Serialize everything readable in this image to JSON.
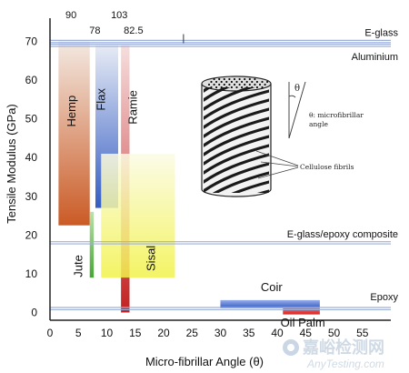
{
  "chart_data": {
    "type": "bar",
    "xlabel": "Micro-fibrillar Angle (θ)",
    "ylabel": "Tensile Modulus (GPa)",
    "xlim": [
      0,
      60
    ],
    "ylim": [
      -2,
      76
    ],
    "xticks": [
      "0",
      "5",
      "10",
      "15",
      "20",
      "25",
      "30",
      "35",
      "40",
      "45",
      "50",
      "55"
    ],
    "yticks": [
      "0",
      "10",
      "20",
      "30",
      "40",
      "50",
      "60",
      "70"
    ],
    "fibres": [
      {
        "name": "Hemp",
        "x_min": 1.5,
        "x_max": 7,
        "y_min": 22.5,
        "y_max": 70,
        "peak_label": "90",
        "color_top": "#f2e8e0",
        "color_bottom": "#c8521a"
      },
      {
        "name": "Jute",
        "x_min": 7,
        "x_max": 7.7,
        "y_min": 9,
        "y_max": 26,
        "peak_label": "",
        "color_top": "#b8e0a8",
        "color_bottom": "#3ea02c"
      },
      {
        "name": "Flax",
        "x_min": 8,
        "x_max": 12,
        "y_min": 27,
        "y_max": 69,
        "peak_label": "103",
        "color_top": "#e6eaf4",
        "color_bottom": "#2a55c0"
      },
      {
        "name": "Ramie",
        "x_min": 12.5,
        "x_max": 14,
        "y_min": 0,
        "y_max": 69,
        "peak_label": "82.5",
        "color_top": "#f6dcdc",
        "color_bottom": "#c01616"
      },
      {
        "name": "Sisal",
        "x_min": 9,
        "x_max": 22,
        "y_min": 9,
        "y_max": 41,
        "peak_label": "",
        "color_top": "#fbfbe4",
        "color_bottom": "#f2f24a"
      },
      {
        "name": "Coir",
        "x_min": 30,
        "x_max": 47.5,
        "y_min": 1.1,
        "y_max": 3.2,
        "peak_label": "",
        "color_top": "#8fa8e8",
        "color_bottom": "#2a55c0"
      },
      {
        "name": "Oil Palm",
        "x_min": 41,
        "x_max": 47.5,
        "y_min": -0.5,
        "y_max": 1.1,
        "peak_label": "",
        "color_top": "#ee6060",
        "color_bottom": "#d41818"
      }
    ],
    "extra_labels": [
      "78"
    ],
    "reference_lines": [
      {
        "name": "E-glass",
        "y": 70,
        "color": "#9fb0d8"
      },
      {
        "name": "Aluminium",
        "y": 69,
        "color": "#9fb0d8"
      },
      {
        "name": "E-glass/epoxy composite",
        "y": 18,
        "color": "#9fb0d8"
      },
      {
        "name": "Epoxy",
        "y": 1,
        "color": "#9fb0d8"
      }
    ],
    "inset": {
      "theta_label": "θ",
      "angle_label": "θ: microfibrillar angle",
      "fibrils_label": "Cellulose fibrils"
    }
  },
  "watermark": {
    "line1": "嘉峪检测网",
    "line2": "AnyTesting.com"
  }
}
